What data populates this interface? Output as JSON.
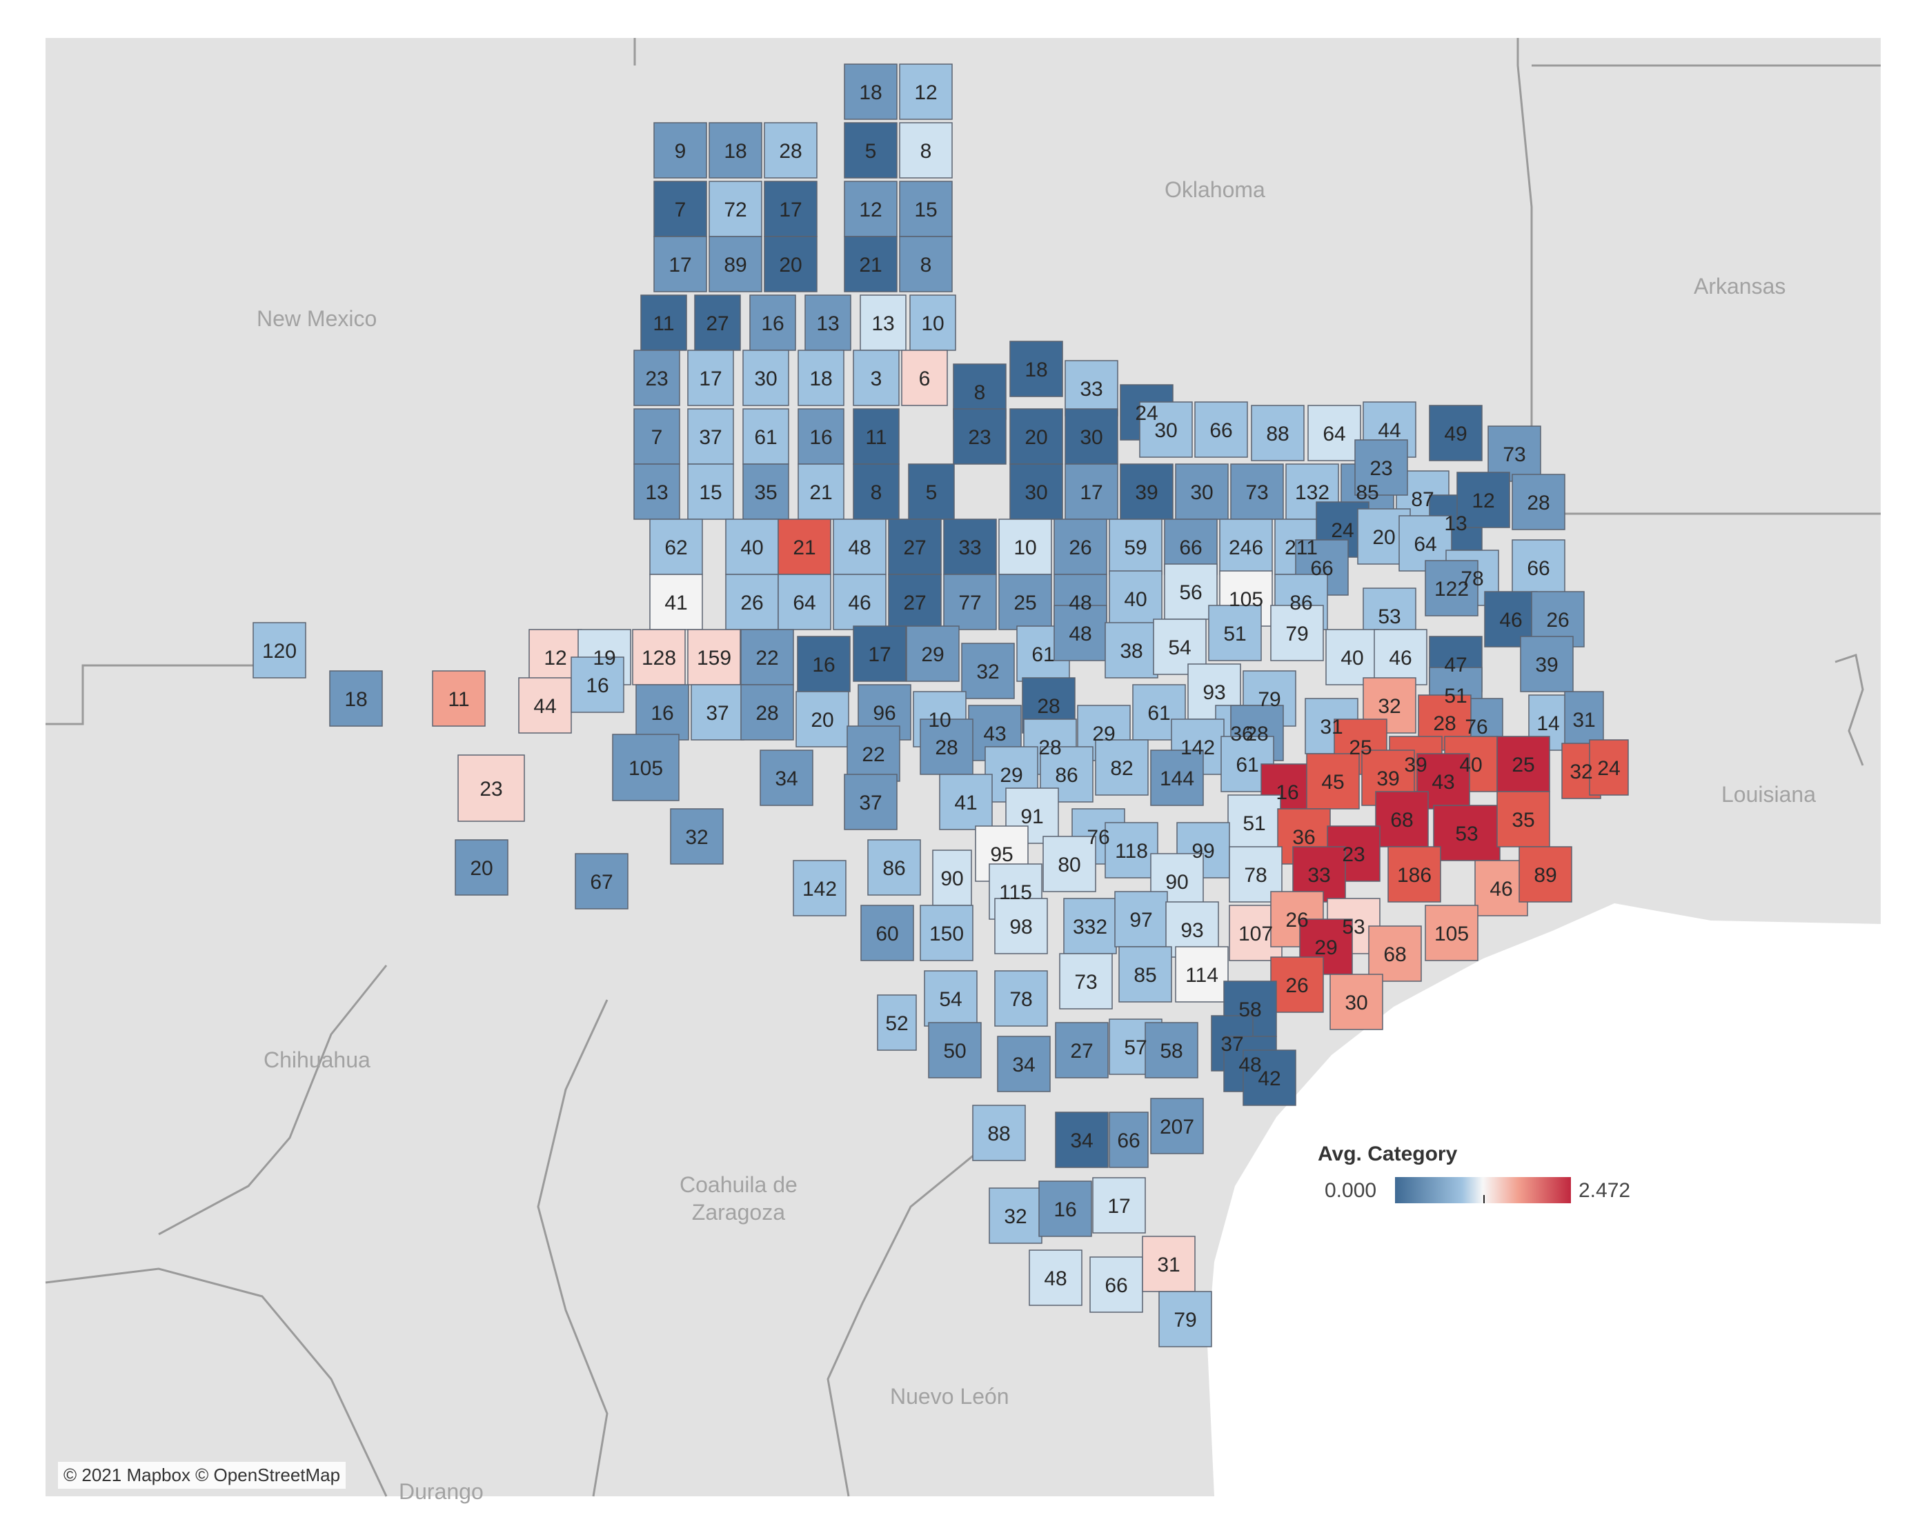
{
  "map": {
    "region_labels": {
      "oklahoma": "Oklahoma",
      "arkansas": "Arkansas",
      "new_mexico": "New Mexico",
      "louisiana": "Louisiana",
      "chihuahua": "Chihuahua",
      "coahuila": "Coahuila de\nZaragoza",
      "nuevo_leon": "Nuevo León",
      "durango": "Durango"
    },
    "attribution": "© 2021 Mapbox © OpenStreetMap",
    "colors": {
      "land": "#e2e2e2",
      "water": "#ffffff",
      "border": "#9a9a9a",
      "county_stroke": "#5a6270",
      "dark_blue": "#3f6a94",
      "mid_blue": "#6f97bd",
      "light_blue": "#9ec2e0",
      "pale_blue": "#cfe2f0",
      "near_white": "#f3f3f3",
      "pale_red": "#f7d5cf",
      "light_red": "#f2a08f",
      "red": "#e05a4f",
      "dark_red": "#c0283f"
    }
  },
  "legend": {
    "title": "Avg. Category",
    "min_label": "0.000",
    "max_label": "2.472",
    "min_value": 0.0,
    "max_value": 2.472
  },
  "counties": [
    {
      "label": "18",
      "shade": "mid_blue"
    },
    {
      "label": "12",
      "shade": "light_blue"
    },
    {
      "label": "9",
      "shade": "mid_blue"
    },
    {
      "label": "18",
      "shade": "mid_blue"
    },
    {
      "label": "28",
      "shade": "light_blue"
    },
    {
      "label": "5",
      "shade": "dark_blue"
    },
    {
      "label": "8",
      "shade": "pale_blue"
    },
    {
      "label": "7",
      "shade": "dark_blue"
    },
    {
      "label": "72",
      "shade": "light_blue"
    },
    {
      "label": "17",
      "shade": "dark_blue"
    },
    {
      "label": "12",
      "shade": "mid_blue"
    },
    {
      "label": "15",
      "shade": "mid_blue"
    },
    {
      "label": "17",
      "shade": "mid_blue"
    },
    {
      "label": "89",
      "shade": "mid_blue"
    },
    {
      "label": "20",
      "shade": "dark_blue"
    },
    {
      "label": "21",
      "shade": "dark_blue"
    },
    {
      "label": "8",
      "shade": "mid_blue"
    },
    {
      "label": "11",
      "shade": "dark_blue"
    },
    {
      "label": "27",
      "shade": "dark_blue"
    },
    {
      "label": "16",
      "shade": "mid_blue"
    },
    {
      "label": "13",
      "shade": "mid_blue"
    },
    {
      "label": "13",
      "shade": "pale_blue"
    },
    {
      "label": "10",
      "shade": "light_blue"
    },
    {
      "label": "23",
      "shade": "mid_blue"
    },
    {
      "label": "17",
      "shade": "light_blue"
    },
    {
      "label": "30",
      "shade": "light_blue"
    },
    {
      "label": "18",
      "shade": "light_blue"
    },
    {
      "label": "3",
      "shade": "light_blue"
    },
    {
      "label": "6",
      "shade": "pale_red"
    },
    {
      "label": "7",
      "shade": "mid_blue"
    },
    {
      "label": "37",
      "shade": "light_blue"
    },
    {
      "label": "61",
      "shade": "light_blue"
    },
    {
      "label": "16",
      "shade": "mid_blue"
    },
    {
      "label": "11",
      "shade": "dark_blue"
    },
    {
      "label": "13",
      "shade": "mid_blue"
    },
    {
      "label": "15",
      "shade": "light_blue"
    },
    {
      "label": "35",
      "shade": "mid_blue"
    },
    {
      "label": "21",
      "shade": "light_blue"
    },
    {
      "label": "8",
      "shade": "dark_blue"
    },
    {
      "label": "5",
      "shade": "dark_blue"
    },
    {
      "label": "62",
      "shade": "light_blue"
    },
    {
      "label": "40",
      "shade": "light_blue"
    },
    {
      "label": "21",
      "shade": "red"
    },
    {
      "label": "48",
      "shade": "light_blue"
    },
    {
      "label": "27",
      "shade": "dark_blue"
    },
    {
      "label": "41",
      "shade": "near_white"
    },
    {
      "label": "26",
      "shade": "light_blue"
    },
    {
      "label": "64",
      "shade": "light_blue"
    },
    {
      "label": "46",
      "shade": "light_blue"
    },
    {
      "label": "27",
      "shade": "dark_blue"
    },
    {
      "label": "8",
      "shade": "dark_blue"
    },
    {
      "label": "18",
      "shade": "dark_blue"
    },
    {
      "label": "33",
      "shade": "light_blue"
    },
    {
      "label": "24",
      "shade": "dark_blue"
    },
    {
      "label": "23",
      "shade": "dark_blue"
    },
    {
      "label": "20",
      "shade": "dark_blue"
    },
    {
      "label": "30",
      "shade": "dark_blue"
    },
    {
      "label": "30",
      "shade": "light_blue"
    },
    {
      "label": "66",
      "shade": "light_blue"
    },
    {
      "label": "88",
      "shade": "light_blue"
    },
    {
      "label": "64",
      "shade": "pale_blue"
    },
    {
      "label": "44",
      "shade": "light_blue"
    },
    {
      "label": "49",
      "shade": "dark_blue"
    },
    {
      "label": "73",
      "shade": "mid_blue"
    },
    {
      "label": "30",
      "shade": "dark_blue"
    },
    {
      "label": "17",
      "shade": "mid_blue"
    },
    {
      "label": "39",
      "shade": "dark_blue"
    },
    {
      "label": "30",
      "shade": "mid_blue"
    },
    {
      "label": "73",
      "shade": "mid_blue"
    },
    {
      "label": "132",
      "shade": "light_blue"
    },
    {
      "label": "85",
      "shade": "mid_blue"
    },
    {
      "label": "87",
      "shade": "light_blue"
    },
    {
      "label": "23",
      "shade": "mid_blue"
    },
    {
      "label": "13",
      "shade": "dark_blue"
    },
    {
      "label": "12",
      "shade": "dark_blue"
    },
    {
      "label": "28",
      "shade": "mid_blue"
    },
    {
      "label": "33",
      "shade": "dark_blue"
    },
    {
      "label": "10",
      "shade": "pale_blue"
    },
    {
      "label": "26",
      "shade": "mid_blue"
    },
    {
      "label": "59",
      "shade": "light_blue"
    },
    {
      "label": "66",
      "shade": "mid_blue"
    },
    {
      "label": "246",
      "shade": "light_blue"
    },
    {
      "label": "211",
      "shade": "light_blue"
    },
    {
      "label": "24",
      "shade": "dark_blue"
    },
    {
      "label": "20",
      "shade": "light_blue"
    },
    {
      "label": "64",
      "shade": "light_blue"
    },
    {
      "label": "66",
      "shade": "mid_blue"
    },
    {
      "label": "78",
      "shade": "light_blue"
    },
    {
      "label": "66",
      "shade": "light_blue"
    },
    {
      "label": "77",
      "shade": "mid_blue"
    },
    {
      "label": "25",
      "shade": "mid_blue"
    },
    {
      "label": "48",
      "shade": "mid_blue"
    },
    {
      "label": "40",
      "shade": "light_blue"
    },
    {
      "label": "56",
      "shade": "pale_blue"
    },
    {
      "label": "105",
      "shade": "near_white"
    },
    {
      "label": "86",
      "shade": "light_blue"
    },
    {
      "label": "53",
      "shade": "light_blue"
    },
    {
      "label": "122",
      "shade": "mid_blue"
    },
    {
      "label": "46",
      "shade": "dark_blue"
    },
    {
      "label": "26",
      "shade": "mid_blue"
    },
    {
      "label": "120",
      "shade": "light_blue"
    },
    {
      "label": "18",
      "shade": "mid_blue"
    },
    {
      "label": "11",
      "shade": "light_red"
    },
    {
      "label": "12",
      "shade": "pale_red"
    },
    {
      "label": "19",
      "shade": "pale_blue"
    },
    {
      "label": "128",
      "shade": "pale_red"
    },
    {
      "label": "159",
      "shade": "pale_red"
    },
    {
      "label": "22",
      "shade": "mid_blue"
    },
    {
      "label": "16",
      "shade": "dark_blue"
    },
    {
      "label": "17",
      "shade": "dark_blue"
    },
    {
      "label": "29",
      "shade": "mid_blue"
    },
    {
      "label": "32",
      "shade": "mid_blue"
    },
    {
      "label": "61",
      "shade": "light_blue"
    },
    {
      "label": "48",
      "shade": "mid_blue"
    },
    {
      "label": "38",
      "shade": "light_blue"
    },
    {
      "label": "54",
      "shade": "pale_blue"
    },
    {
      "label": "51",
      "shade": "light_blue"
    },
    {
      "label": "79",
      "shade": "pale_blue"
    },
    {
      "label": "40",
      "shade": "pale_blue"
    },
    {
      "label": "46",
      "shade": "pale_blue"
    },
    {
      "label": "47",
      "shade": "dark_blue"
    },
    {
      "label": "39",
      "shade": "mid_blue"
    },
    {
      "label": "44",
      "shade": "pale_red"
    },
    {
      "label": "16",
      "shade": "light_blue"
    },
    {
      "label": "16",
      "shade": "mid_blue"
    },
    {
      "label": "37",
      "shade": "light_blue"
    },
    {
      "label": "28",
      "shade": "mid_blue"
    },
    {
      "label": "20",
      "shade": "light_blue"
    },
    {
      "label": "96",
      "shade": "mid_blue"
    },
    {
      "label": "10",
      "shade": "light_blue"
    },
    {
      "label": "43",
      "shade": "mid_blue"
    },
    {
      "label": "28",
      "shade": "dark_blue"
    },
    {
      "label": "29",
      "shade": "light_blue"
    },
    {
      "label": "61",
      "shade": "light_blue"
    },
    {
      "label": "93",
      "shade": "pale_blue"
    },
    {
      "label": "79",
      "shade": "light_blue"
    },
    {
      "label": "36",
      "shade": "light_blue"
    },
    {
      "label": "31",
      "shade": "light_blue"
    },
    {
      "label": "51",
      "shade": "mid_blue"
    },
    {
      "label": "76",
      "shade": "mid_blue"
    },
    {
      "label": "14",
      "shade": "light_blue"
    },
    {
      "label": "31",
      "shade": "mid_blue"
    },
    {
      "label": "23",
      "shade": "pale_red"
    },
    {
      "label": "105",
      "shade": "mid_blue"
    },
    {
      "label": "34",
      "shade": "mid_blue"
    },
    {
      "label": "22",
      "shade": "mid_blue"
    },
    {
      "label": "28",
      "shade": "mid_blue"
    },
    {
      "label": "28",
      "shade": "light_blue"
    },
    {
      "label": "142",
      "shade": "light_blue"
    },
    {
      "label": "28",
      "shade": "mid_blue"
    },
    {
      "label": "32",
      "shade": "light_red"
    },
    {
      "label": "28",
      "shade": "red"
    },
    {
      "label": "25",
      "shade": "red"
    },
    {
      "label": "39",
      "shade": "red"
    },
    {
      "label": "40",
      "shade": "red"
    },
    {
      "label": "25",
      "shade": "dark_red"
    },
    {
      "label": "32",
      "shade": "red"
    },
    {
      "label": "24",
      "shade": "red"
    },
    {
      "label": "29",
      "shade": "light_blue"
    },
    {
      "label": "86",
      "shade": "light_blue"
    },
    {
      "label": "82",
      "shade": "light_blue"
    },
    {
      "label": "144",
      "shade": "mid_blue"
    },
    {
      "label": "61",
      "shade": "light_blue"
    },
    {
      "label": "16",
      "shade": "dark_red"
    },
    {
      "label": "45",
      "shade": "red"
    },
    {
      "label": "39",
      "shade": "red"
    },
    {
      "label": "43",
      "shade": "dark_red"
    },
    {
      "label": "37",
      "shade": "mid_blue"
    },
    {
      "label": "41",
      "shade": "light_blue"
    },
    {
      "label": "91",
      "shade": "pale_blue"
    },
    {
      "label": "76",
      "shade": "light_blue"
    },
    {
      "label": "51",
      "shade": "pale_blue"
    },
    {
      "label": "68",
      "shade": "dark_red"
    },
    {
      "label": "53",
      "shade": "dark_red"
    },
    {
      "label": "35",
      "shade": "red"
    },
    {
      "label": "32",
      "shade": "mid_blue"
    },
    {
      "label": "95",
      "shade": "near_white"
    },
    {
      "label": "80",
      "shade": "pale_blue"
    },
    {
      "label": "118",
      "shade": "light_blue"
    },
    {
      "label": "99",
      "shade": "light_blue"
    },
    {
      "label": "36",
      "shade": "red"
    },
    {
      "label": "23",
      "shade": "dark_red"
    },
    {
      "label": "20",
      "shade": "mid_blue"
    },
    {
      "label": "67",
      "shade": "mid_blue"
    },
    {
      "label": "142",
      "shade": "light_blue"
    },
    {
      "label": "86",
      "shade": "light_blue"
    },
    {
      "label": "90",
      "shade": "pale_blue"
    },
    {
      "label": "115",
      "shade": "pale_blue"
    },
    {
      "label": "90",
      "shade": "pale_blue"
    },
    {
      "label": "78",
      "shade": "pale_blue"
    },
    {
      "label": "33",
      "shade": "dark_red"
    },
    {
      "label": "186",
      "shade": "red"
    },
    {
      "label": "46",
      "shade": "light_red"
    },
    {
      "label": "89",
      "shade": "red"
    },
    {
      "label": "60",
      "shade": "mid_blue"
    },
    {
      "label": "150",
      "shade": "light_blue"
    },
    {
      "label": "98",
      "shade": "pale_blue"
    },
    {
      "label": "332",
      "shade": "light_blue"
    },
    {
      "label": "97",
      "shade": "light_blue"
    },
    {
      "label": "93",
      "shade": "pale_blue"
    },
    {
      "label": "107",
      "shade": "pale_red"
    },
    {
      "label": "26",
      "shade": "light_red"
    },
    {
      "label": "53",
      "shade": "pale_red"
    },
    {
      "label": "29",
      "shade": "dark_red"
    },
    {
      "label": "68",
      "shade": "light_red"
    },
    {
      "label": "105",
      "shade": "light_red"
    },
    {
      "label": "73",
      "shade": "pale_blue"
    },
    {
      "label": "85",
      "shade": "light_blue"
    },
    {
      "label": "114",
      "shade": "near_white"
    },
    {
      "label": "26",
      "shade": "red"
    },
    {
      "label": "30",
      "shade": "light_red"
    },
    {
      "label": "54",
      "shade": "light_blue"
    },
    {
      "label": "78",
      "shade": "light_blue"
    },
    {
      "label": "58",
      "shade": "dark_blue"
    },
    {
      "label": "52",
      "shade": "light_blue"
    },
    {
      "label": "50",
      "shade": "mid_blue"
    },
    {
      "label": "34",
      "shade": "mid_blue"
    },
    {
      "label": "27",
      "shade": "mid_blue"
    },
    {
      "label": "57",
      "shade": "light_blue"
    },
    {
      "label": "58",
      "shade": "mid_blue"
    },
    {
      "label": "37",
      "shade": "dark_blue"
    },
    {
      "label": "48",
      "shade": "dark_blue"
    },
    {
      "label": "42",
      "shade": "dark_blue"
    },
    {
      "label": "88",
      "shade": "light_blue"
    },
    {
      "label": "34",
      "shade": "dark_blue"
    },
    {
      "label": "66",
      "shade": "mid_blue"
    },
    {
      "label": "207",
      "shade": "mid_blue"
    },
    {
      "label": "32",
      "shade": "light_blue"
    },
    {
      "label": "16",
      "shade": "mid_blue"
    },
    {
      "label": "17",
      "shade": "pale_blue"
    },
    {
      "label": "48",
      "shade": "pale_blue"
    },
    {
      "label": "66",
      "shade": "pale_blue"
    },
    {
      "label": "31",
      "shade": "pale_red"
    },
    {
      "label": "79",
      "shade": "light_blue"
    }
  ]
}
